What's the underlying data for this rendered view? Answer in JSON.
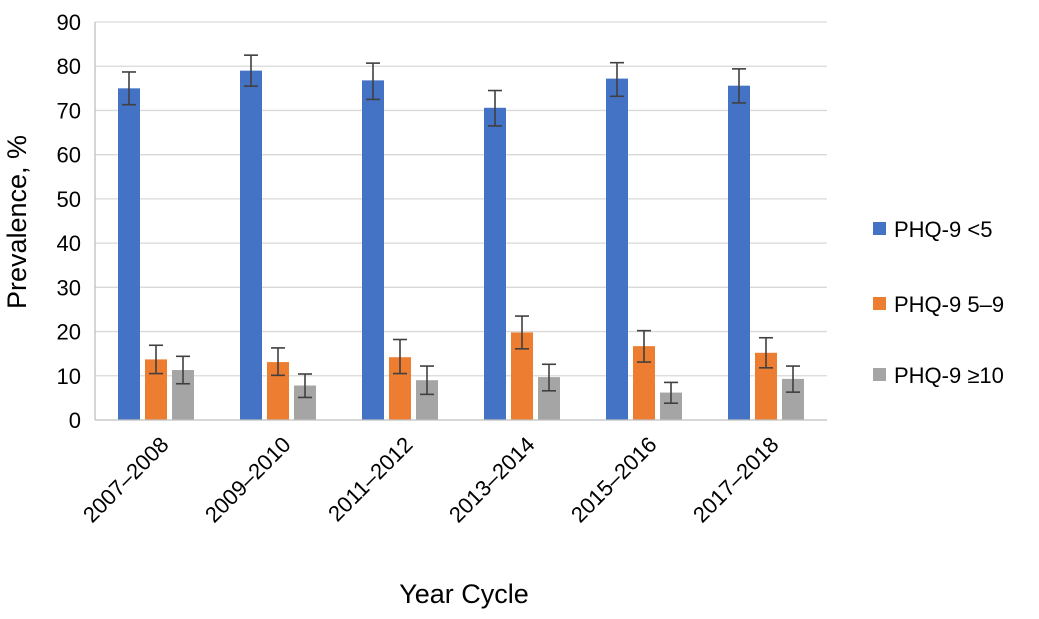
{
  "chart_data": {
    "type": "bar",
    "xlabel": "Year Cycle",
    "ylabel": "Prevalence, %",
    "ylim": [
      0,
      90
    ],
    "yticks": [
      0,
      10,
      20,
      30,
      40,
      50,
      60,
      70,
      80,
      90
    ],
    "grid": true,
    "legend_position": "right",
    "categories": [
      "2007–2008",
      "2009–2010",
      "2011–2012",
      "2013–2014",
      "2015–2016",
      "2017–2018"
    ],
    "series": [
      {
        "name": "PHQ-9 <5",
        "color": "#4472C4",
        "values": [
          75,
          79,
          76.8,
          70.6,
          77.2,
          75.6
        ],
        "error_low": [
          71.3,
          75.5,
          72.5,
          66.5,
          73.2,
          71.7
        ],
        "error_high": [
          78.7,
          82.5,
          80.7,
          74.5,
          80.8,
          79.4
        ]
      },
      {
        "name": "PHQ-9 5–9",
        "color": "#ED7D31",
        "values": [
          13.7,
          13.1,
          14.2,
          19.8,
          16.7,
          15.2
        ],
        "error_low": [
          10.5,
          10.1,
          10.5,
          16.1,
          13.1,
          11.8
        ],
        "error_high": [
          16.9,
          16.3,
          18.2,
          23.5,
          20.2,
          18.6
        ]
      },
      {
        "name": "PHQ-9 ≥10",
        "color": "#A5A5A5",
        "values": [
          11.3,
          7.8,
          9.0,
          9.7,
          6.2,
          9.3
        ],
        "error_low": [
          8.2,
          5.1,
          5.8,
          6.6,
          3.8,
          6.3
        ],
        "error_high": [
          14.4,
          10.4,
          12.2,
          12.6,
          8.5,
          12.2
        ]
      }
    ]
  }
}
